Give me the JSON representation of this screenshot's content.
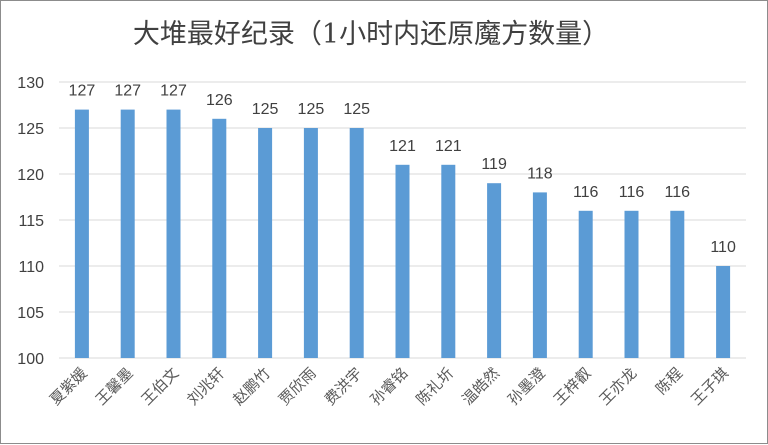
{
  "chart_data": {
    "type": "bar",
    "title": "大堆最好纪录（1小时内还原魔方数量）",
    "categories": [
      "夏紫媛",
      "王馨墨",
      "王伯文",
      "刘兆轩",
      "赵鹏竹",
      "贾欣雨",
      "费洪宇",
      "孙睿铭",
      "陈礼圻",
      "温皓然",
      "孙墨澄",
      "王梓叡",
      "王亦龙",
      "陈程",
      "王子琪"
    ],
    "values": [
      127,
      127,
      127,
      126,
      125,
      125,
      125,
      121,
      121,
      119,
      118,
      116,
      116,
      116,
      110
    ],
    "ylim": [
      100,
      130
    ],
    "yticks": [
      100,
      105,
      110,
      115,
      120,
      125,
      130
    ],
    "grid": true,
    "data_labels": true,
    "bar_color": "#5b9bd5",
    "grid_color": "#d9d9d9"
  }
}
